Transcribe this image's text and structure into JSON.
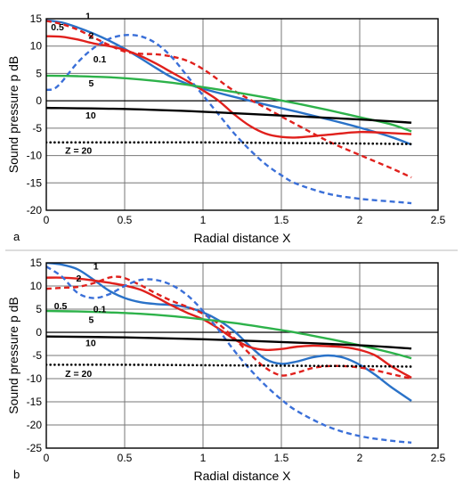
{
  "chart_data": [
    {
      "type": "line",
      "panel_label": "a",
      "xlabel": "Radial distance  X",
      "ylabel": "Sound pressure  p  dB",
      "xlim": [
        0,
        2.5
      ],
      "ylim": [
        -20,
        15
      ],
      "xticks": [
        "0",
        "0.5",
        "1",
        "1.5",
        "2",
        "2.5"
      ],
      "yticks": [
        "15",
        "10",
        "5",
        "0",
        "-5",
        "-10",
        "-15",
        "-20"
      ],
      "grid": true,
      "series": [
        {
          "name": "1",
          "color": "#2a72c8",
          "dash": "solid",
          "x": [
            0,
            0.1,
            0.2,
            0.3,
            0.4,
            0.5,
            0.6,
            0.7,
            0.8,
            0.9,
            1.0,
            1.2,
            1.4,
            1.6,
            1.8,
            2.0,
            2.2,
            2.33
          ],
          "y": [
            14.7,
            14.3,
            13.4,
            12.3,
            11.0,
            9.5,
            7.8,
            6.0,
            4.3,
            3.1,
            2.2,
            0.7,
            -0.7,
            -2.0,
            -3.4,
            -4.9,
            -6.6,
            -8.0
          ]
        },
        {
          "name": "2",
          "color": "#e0201c",
          "dash": "solid",
          "x": [
            0,
            0.1,
            0.2,
            0.3,
            0.4,
            0.5,
            0.6,
            0.7,
            0.8,
            0.9,
            1.0,
            1.1,
            1.2,
            1.3,
            1.4,
            1.5,
            1.6,
            1.8,
            2.0,
            2.2,
            2.33
          ],
          "y": [
            11.8,
            11.7,
            11.2,
            10.5,
            10.0,
            9.3,
            8.2,
            6.8,
            5.2,
            3.6,
            1.9,
            0.0,
            -2.5,
            -4.6,
            -6.0,
            -6.6,
            -6.7,
            -6.2,
            -5.7,
            -5.9,
            -6.1
          ]
        },
        {
          "name": "0.5",
          "color": "#e0201c",
          "dash": "dashed",
          "x": [
            0,
            0.1,
            0.2,
            0.3,
            0.4,
            0.5,
            0.6,
            0.7,
            0.8,
            0.9,
            1.0,
            1.1,
            1.2,
            1.4,
            1.6,
            1.8,
            2.0,
            2.2,
            2.33
          ],
          "y": [
            14.6,
            14.0,
            13.0,
            11.6,
            10.2,
            9.0,
            8.6,
            8.5,
            8.1,
            7.3,
            5.8,
            3.8,
            1.8,
            -1.3,
            -4.4,
            -7.4,
            -9.9,
            -12.3,
            -14.0
          ]
        },
        {
          "name": "0.1",
          "color": "#3a6fd8",
          "dash": "dashed",
          "x": [
            0,
            0.05,
            0.1,
            0.2,
            0.3,
            0.4,
            0.5,
            0.6,
            0.7,
            0.8,
            0.9,
            1.0,
            1.1,
            1.2,
            1.3,
            1.4,
            1.5,
            1.6,
            1.8,
            2.0,
            2.2,
            2.33
          ],
          "y": [
            2.0,
            2.2,
            3.5,
            7.0,
            9.6,
            11.3,
            12.0,
            11.8,
            10.5,
            8.0,
            4.5,
            1.0,
            -2.5,
            -6.0,
            -9.0,
            -11.6,
            -13.6,
            -15.2,
            -17.0,
            -17.9,
            -18.4,
            -18.7
          ]
        },
        {
          "name": "5",
          "color": "#2db24a",
          "dash": "solid",
          "x": [
            0,
            0.2,
            0.4,
            0.6,
            0.8,
            1.0,
            1.2,
            1.4,
            1.6,
            1.8,
            2.0,
            2.2,
            2.33
          ],
          "y": [
            4.6,
            4.5,
            4.3,
            3.9,
            3.3,
            2.5,
            1.6,
            0.6,
            -0.5,
            -1.7,
            -3.0,
            -4.3,
            -5.6
          ]
        },
        {
          "name": "10",
          "color": "#000000",
          "dash": "solid",
          "x": [
            0,
            0.5,
            1.0,
            1.5,
            2.0,
            2.33
          ],
          "y": [
            -1.3,
            -1.5,
            -2.0,
            -2.7,
            -3.4,
            -4.0
          ]
        },
        {
          "name": "Z = 20",
          "color": "#000000",
          "dash": "dotted",
          "x": [
            0,
            0.5,
            1.0,
            1.5,
            2.0,
            2.33
          ],
          "y": [
            -7.6,
            -7.6,
            -7.6,
            -7.7,
            -7.8,
            -7.9
          ]
        }
      ]
    },
    {
      "type": "line",
      "panel_label": "b",
      "xlabel": "Radial distance  X",
      "ylabel": "Sound pressure  p  dB",
      "xlim": [
        0,
        2.5
      ],
      "ylim": [
        -25,
        15
      ],
      "xticks": [
        "0",
        "0.5",
        "1",
        "1.5",
        "2",
        "2.5"
      ],
      "yticks": [
        "15",
        "10",
        "5",
        "0",
        "-5",
        "-10",
        "-15",
        "-20",
        "-25"
      ],
      "grid": true,
      "series": [
        {
          "name": "1",
          "color": "#2a72c8",
          "dash": "solid",
          "x": [
            0,
            0.1,
            0.2,
            0.3,
            0.4,
            0.5,
            0.6,
            0.7,
            0.8,
            0.9,
            1.0,
            1.1,
            1.2,
            1.3,
            1.4,
            1.5,
            1.6,
            1.7,
            1.8,
            1.9,
            2.0,
            2.1,
            2.2,
            2.33
          ],
          "y": [
            15.0,
            14.6,
            13.6,
            11.4,
            9.0,
            7.4,
            6.5,
            6.1,
            5.9,
            5.4,
            4.3,
            2.6,
            0.2,
            -3.0,
            -5.8,
            -6.8,
            -6.3,
            -5.4,
            -5.0,
            -5.5,
            -7.0,
            -9.2,
            -11.8,
            -14.8
          ]
        },
        {
          "name": "2",
          "color": "#e0201c",
          "dash": "solid",
          "x": [
            0,
            0.1,
            0.2,
            0.3,
            0.4,
            0.5,
            0.6,
            0.7,
            0.8,
            0.9,
            1.0,
            1.1,
            1.2,
            1.3,
            1.4,
            1.5,
            1.6,
            1.7,
            1.8,
            1.9,
            2.0,
            2.1,
            2.2,
            2.33
          ],
          "y": [
            11.8,
            11.8,
            11.6,
            11.2,
            10.7,
            10.1,
            9.2,
            7.6,
            5.8,
            4.2,
            2.8,
            0.8,
            -1.5,
            -3.2,
            -3.8,
            -3.6,
            -3.1,
            -2.9,
            -3.0,
            -3.2,
            -3.8,
            -5.0,
            -7.3,
            -9.8
          ]
        },
        {
          "name": "0.5",
          "color": "#e0201c",
          "dash": "dashed",
          "x": [
            0,
            0.1,
            0.2,
            0.3,
            0.4,
            0.45,
            0.5,
            0.6,
            0.7,
            0.8,
            0.9,
            1.0,
            1.1,
            1.2,
            1.3,
            1.4,
            1.5,
            1.6,
            1.7,
            1.8,
            1.9,
            2.0,
            2.1,
            2.2,
            2.33
          ],
          "y": [
            9.4,
            9.6,
            9.8,
            10.6,
            11.8,
            12.0,
            11.7,
            10.2,
            8.4,
            6.8,
            5.5,
            4.0,
            1.8,
            -1.3,
            -4.7,
            -7.7,
            -9.3,
            -8.7,
            -7.7,
            -7.3,
            -7.3,
            -7.6,
            -8.2,
            -9.0,
            -10.0
          ]
        },
        {
          "name": "0.1",
          "color": "#3a6fd8",
          "dash": "dashed",
          "x": [
            0,
            0.1,
            0.2,
            0.3,
            0.4,
            0.5,
            0.6,
            0.7,
            0.8,
            0.9,
            1.0,
            1.1,
            1.2,
            1.3,
            1.4,
            1.5,
            1.6,
            1.8,
            2.0,
            2.2,
            2.33
          ],
          "y": [
            14.2,
            12.0,
            8.5,
            7.4,
            8.2,
            10.0,
            11.3,
            11.3,
            10.2,
            8.0,
            4.6,
            0.5,
            -4.0,
            -8.0,
            -11.5,
            -14.5,
            -17.0,
            -20.4,
            -22.4,
            -23.4,
            -23.8
          ]
        },
        {
          "name": "5",
          "color": "#2db24a",
          "dash": "solid",
          "x": [
            0,
            0.2,
            0.4,
            0.6,
            0.8,
            1.0,
            1.2,
            1.4,
            1.6,
            1.8,
            2.0,
            2.2,
            2.33
          ],
          "y": [
            4.6,
            4.5,
            4.3,
            4.0,
            3.5,
            2.8,
            2.0,
            1.0,
            -0.1,
            -1.4,
            -2.8,
            -4.4,
            -5.6
          ]
        },
        {
          "name": "10",
          "color": "#000000",
          "dash": "solid",
          "x": [
            0,
            0.5,
            1.0,
            1.5,
            2.0,
            2.33
          ],
          "y": [
            -0.9,
            -1.1,
            -1.5,
            -2.1,
            -2.8,
            -3.5
          ]
        },
        {
          "name": "Z = 20",
          "color": "#000000",
          "dash": "dotted",
          "x": [
            0,
            0.5,
            1.0,
            1.5,
            2.0,
            2.33
          ],
          "y": [
            -7.0,
            -7.0,
            -7.1,
            -7.2,
            -7.3,
            -7.4
          ]
        }
      ]
    }
  ]
}
